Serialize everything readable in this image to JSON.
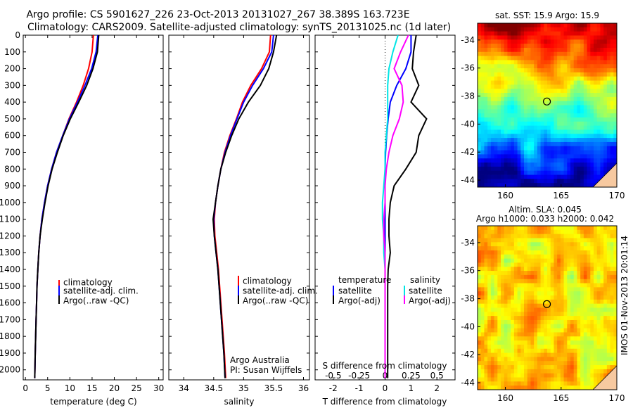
{
  "header": {
    "line1": "Argo profile: CS 5901627_226 23-Oct-2013 20131027_267 38.389S 163.723E",
    "line2": "Climatology: CARS2009. Satellite-adjusted climatology: synTS_20131025.nc (1d later)"
  },
  "depth_ticks": [
    "0",
    "100",
    "200",
    "300",
    "400",
    "500",
    "600",
    "700",
    "800",
    "900",
    "1000",
    "1100",
    "1200",
    "1300",
    "1400",
    "1500",
    "1600",
    "1700",
    "1800",
    "1900",
    "2000"
  ],
  "panels": {
    "temperature": {
      "xlabel": "temperature (deg C)",
      "xticks": [
        "0",
        "5",
        "10",
        "15",
        "20",
        "25",
        "30"
      ],
      "legend": [
        "climatology",
        "satellite-adj. clim.",
        "Argo(..raw -QC)"
      ]
    },
    "salinity": {
      "xlabel": "salinity",
      "xticks": [
        "34",
        "34.5",
        "35",
        "35.5",
        "36"
      ],
      "legend": [
        "climatology",
        "satellite-adj. clim.",
        "Argo(..raw -QC)"
      ],
      "note1": "Argo Australia",
      "note2": "PI: Susan Wijffels"
    },
    "difference": {
      "xlabel_bottom": "T difference from climatology",
      "xlabel_top": "S difference from climatology",
      "top_ticks": [
        "-0.5",
        "-0.25",
        "0",
        "0.25",
        "0.5"
      ],
      "bottom_ticks": [
        "-2",
        "-1",
        "0",
        "1",
        "2"
      ],
      "legend_t_title": "temperature",
      "legend_s_title": "salinity",
      "legend_t": [
        "satellite",
        "Argo(-adj)"
      ],
      "legend_s": [
        "satellite",
        "Argo(-adj)"
      ]
    },
    "sst_map": {
      "title": "sat. SST: 15.9 Argo: 15.9",
      "yticks": [
        "-34",
        "-36",
        "-38",
        "-40",
        "-42",
        "-44"
      ],
      "xticks": [
        "160",
        "165",
        "170"
      ]
    },
    "sla_map": {
      "title1": "Altim. SLA: 0.045",
      "title2": "Argo h1000: 0.033 h2000: 0.042",
      "yticks": [
        "-34",
        "-36",
        "-38",
        "-40",
        "-42",
        "-44"
      ],
      "xticks": [
        "160",
        "165",
        "170"
      ]
    },
    "stamp": "IMOS 01-Nov-2013 20:01:14"
  },
  "colors": {
    "climatology": "#ff0000",
    "satellite": "#0000ff",
    "argo": "#000000",
    "sat_salinity": "#00e5e5",
    "argo_salinity": "#ff00ff"
  },
  "chart_data": [
    {
      "type": "line",
      "xlabel": "temperature (deg C)",
      "ylabel": "",
      "xlim": [
        -0.5,
        31
      ],
      "ylim": [
        2060,
        0
      ],
      "series": [
        {
          "name": "climatology",
          "x": [
            15.3,
            15.0,
            14.2,
            13.0,
            11.5,
            9.8,
            8.4,
            7.0,
            5.9,
            5.0,
            4.3,
            3.7,
            3.3,
            3.0,
            2.8,
            2.6,
            2.5,
            2.4,
            2.3,
            2.2,
            2.1
          ],
          "y": [
            0,
            100,
            200,
            300,
            400,
            500,
            600,
            700,
            800,
            900,
            1000,
            1100,
            1200,
            1300,
            1400,
            1500,
            1600,
            1700,
            1800,
            1900,
            2050
          ]
        },
        {
          "name": "satellite-adj. clim.",
          "x": [
            16.3,
            15.9,
            14.9,
            13.4,
            11.7,
            9.9,
            8.4,
            7.0,
            5.9,
            5.0,
            4.3,
            3.7,
            3.3,
            3.0,
            2.8,
            2.6,
            2.5,
            2.4,
            2.3,
            2.2,
            2.1
          ],
          "y": [
            0,
            100,
            200,
            300,
            400,
            500,
            600,
            700,
            800,
            900,
            1000,
            1100,
            1200,
            1300,
            1400,
            1500,
            1600,
            1700,
            1800,
            1900,
            2050
          ]
        },
        {
          "name": "Argo(..raw -QC)",
          "x": [
            16.5,
            16.2,
            15.2,
            13.8,
            12.0,
            10.1,
            8.5,
            7.2,
            6.0,
            5.1,
            4.4,
            3.8,
            3.3,
            3.0,
            2.8,
            2.6,
            2.5,
            2.4,
            2.3,
            2.2,
            2.1
          ],
          "y": [
            0,
            100,
            200,
            300,
            400,
            500,
            600,
            700,
            800,
            900,
            1000,
            1100,
            1200,
            1300,
            1400,
            1500,
            1600,
            1700,
            1800,
            1900,
            2050
          ]
        }
      ]
    },
    {
      "type": "line",
      "xlabel": "salinity",
      "ylabel": "",
      "xlim": [
        33.75,
        36.1
      ],
      "ylim": [
        2060,
        0
      ],
      "series": [
        {
          "name": "climatology",
          "x": [
            35.45,
            35.43,
            35.3,
            35.12,
            34.98,
            34.88,
            34.77,
            34.68,
            34.62,
            34.57,
            34.53,
            34.51,
            34.52,
            34.55,
            34.58,
            34.6,
            34.62,
            34.64,
            34.66,
            34.68,
            34.7
          ],
          "y": [
            0,
            100,
            200,
            300,
            400,
            500,
            600,
            700,
            800,
            900,
            1000,
            1100,
            1200,
            1300,
            1400,
            1500,
            1600,
            1700,
            1800,
            1900,
            2050
          ]
        },
        {
          "name": "satellite-adj. clim.",
          "x": [
            35.5,
            35.47,
            35.33,
            35.15,
            35.0,
            34.89,
            34.78,
            34.69,
            34.62,
            34.57,
            34.53,
            34.5,
            34.51,
            34.54,
            34.57,
            34.59,
            34.61,
            34.63,
            34.65,
            34.67,
            34.69
          ],
          "y": [
            0,
            100,
            200,
            300,
            400,
            500,
            600,
            700,
            800,
            900,
            1000,
            1100,
            1200,
            1300,
            1400,
            1500,
            1600,
            1700,
            1800,
            1900,
            2050
          ]
        },
        {
          "name": "Argo(..raw -QC)",
          "x": [
            35.55,
            35.5,
            35.42,
            35.28,
            35.08,
            34.92,
            34.8,
            34.7,
            34.62,
            34.57,
            34.53,
            34.49,
            34.51,
            34.54,
            34.57,
            34.59,
            34.61,
            34.63,
            34.65,
            34.67,
            34.69
          ],
          "y": [
            0,
            100,
            200,
            300,
            400,
            500,
            600,
            700,
            800,
            900,
            1000,
            1100,
            1200,
            1300,
            1400,
            1500,
            1600,
            1700,
            1800,
            1900,
            2050
          ]
        }
      ]
    },
    {
      "type": "line",
      "xlabel": "T difference from climatology",
      "ylabel": "",
      "xlim": [
        -2.7,
        2.7
      ],
      "ylim": [
        2060,
        0
      ],
      "series": [
        {
          "name": "temperature satellite",
          "x": [
            1.0,
            1.0,
            0.8,
            0.45,
            0.2,
            0.12,
            0.06,
            0.02,
            0.0,
            0.0,
            0.0,
            0.0,
            0.0,
            0.0,
            0.0,
            0.0,
            0.0,
            0.0,
            0.0,
            0.0,
            0.0
          ],
          "y": [
            0,
            100,
            200,
            300,
            400,
            500,
            600,
            700,
            800,
            900,
            1000,
            1100,
            1200,
            1300,
            1400,
            1500,
            1600,
            1700,
            1800,
            1900,
            2050
          ]
        },
        {
          "name": "temperature Argo(-adj)",
          "x": [
            1.2,
            1.1,
            1.05,
            1.3,
            1.0,
            1.6,
            1.3,
            1.2,
            0.8,
            0.35,
            0.2,
            0.15,
            0.15,
            0.2,
            0.12,
            0.1,
            0.1,
            0.1,
            0.1,
            0.1,
            0.1
          ],
          "y": [
            0,
            100,
            200,
            300,
            400,
            500,
            600,
            700,
            800,
            900,
            1000,
            1100,
            1200,
            1300,
            1400,
            1500,
            1600,
            1700,
            1800,
            1900,
            2050
          ]
        },
        {
          "name": "salinity satellite",
          "x": [
            0.5,
            0.3,
            0.15,
            0.1,
            0.1,
            0.1,
            0.05,
            0.0,
            0.0,
            -0.05,
            -0.1,
            -0.1,
            -0.05,
            -0.05,
            0.0,
            0.0,
            0.0,
            0.0,
            0.0,
            0.0,
            0.0
          ],
          "y": [
            0,
            100,
            200,
            300,
            400,
            500,
            600,
            700,
            800,
            900,
            1000,
            1100,
            1200,
            1300,
            1400,
            1500,
            1600,
            1700,
            1800,
            1900,
            2050
          ]
        },
        {
          "name": "salinity Argo(-adj)",
          "x": [
            0.9,
            0.6,
            0.35,
            0.65,
            0.7,
            0.55,
            0.3,
            0.15,
            0.05,
            0.0,
            0.0,
            -0.05,
            -0.05,
            0.0,
            0.0,
            0.0,
            0.0,
            0.0,
            0.0,
            0.0,
            0.0
          ],
          "y": [
            0,
            100,
            200,
            300,
            400,
            500,
            600,
            700,
            800,
            900,
            1000,
            1100,
            1200,
            1300,
            1400,
            1500,
            1600,
            1700,
            1800,
            1900,
            2050
          ]
        }
      ]
    },
    {
      "type": "heatmap",
      "title": "sat. SST: 15.9 Argo: 15.9",
      "xlim": [
        157.5,
        170
      ],
      "ylim": [
        -44.5,
        -32.8
      ],
      "argo_position": {
        "lon": 163.723,
        "lat": -38.389
      }
    },
    {
      "type": "heatmap",
      "title": "Altim. SLA: 0.045",
      "xlim": [
        157.5,
        170
      ],
      "ylim": [
        -44.5,
        -32.8
      ],
      "argo_position": {
        "lon": 163.723,
        "lat": -38.389
      }
    }
  ]
}
